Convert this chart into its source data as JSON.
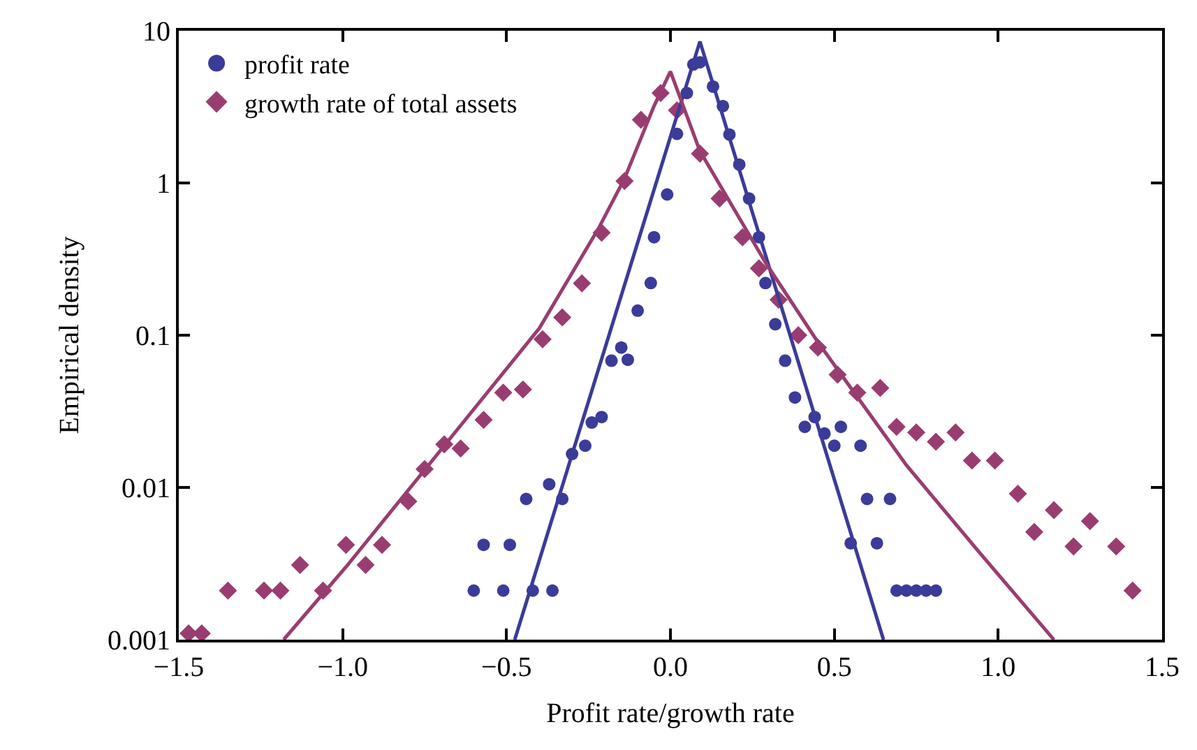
{
  "chart_data": {
    "type": "scatter",
    "xlabel": "Profit rate/growth rate",
    "ylabel": "Empirical density",
    "log": "y",
    "legend": "top left",
    "xlim": [
      -1.5,
      1.5
    ],
    "ylim": [
      0.001,
      10
    ],
    "xticks": [
      {
        "value": -1.5,
        "label": "−1.5"
      },
      {
        "value": -1.0,
        "label": "−1.0"
      },
      {
        "value": -0.5,
        "label": "−0.5"
      },
      {
        "value": 0,
        "label": "0.0"
      },
      {
        "value": 0.5,
        "label": "0.5"
      },
      {
        "value": 1.0,
        "label": "1.0"
      },
      {
        "value": 1.5,
        "label": "1.5"
      }
    ],
    "yticks": [
      0.001,
      0.01,
      0.1,
      1,
      10
    ],
    "series": [
      {
        "name": "profit rate",
        "marker": "circle",
        "color": "#3b3b99",
        "x": [
          -0.6,
          -0.51,
          -0.42,
          -0.36,
          -0.57,
          -0.49,
          -0.44,
          -0.37,
          -0.33,
          -0.3,
          -0.26,
          -0.24,
          -0.21,
          -0.18,
          -0.15,
          -0.13,
          -0.1,
          -0.06,
          -0.05,
          -0.01,
          0.02,
          0.05,
          0.07,
          0.09,
          0.13,
          0.16,
          0.18,
          0.21,
          0.24,
          0.27,
          0.29,
          0.32,
          0.35,
          0.38,
          0.41,
          0.44,
          0.47,
          0.5,
          0.52,
          0.58,
          0.6,
          0.67,
          0.55,
          0.63,
          0.69,
          0.72,
          0.75,
          0.78,
          0.81
        ],
        "values": [
          0.0021,
          0.0021,
          0.0021,
          0.0021,
          0.0042,
          0.0042,
          0.0084,
          0.0105,
          0.0084,
          0.0166,
          0.0188,
          0.0267,
          0.029,
          0.068,
          0.083,
          0.069,
          0.145,
          0.22,
          0.44,
          0.84,
          2.1,
          3.9,
          6.0,
          6.2,
          4.3,
          3.2,
          2.08,
          1.32,
          0.79,
          0.44,
          0.22,
          0.118,
          0.068,
          0.039,
          0.025,
          0.029,
          0.0226,
          0.0188,
          0.025,
          0.0188,
          0.0084,
          0.0084,
          0.0043,
          0.0043,
          0.0021,
          0.0021,
          0.0021,
          0.0021,
          0.0021
        ]
      },
      {
        "name": "growth rate of total assets",
        "marker": "diamond",
        "color": "#993d70",
        "x": [
          -1.47,
          -1.43,
          -1.35,
          -1.24,
          -1.19,
          -1.13,
          -1.06,
          -0.99,
          -0.93,
          -0.88,
          -0.8,
          -0.75,
          -0.69,
          -0.64,
          -0.57,
          -0.51,
          -0.45,
          -0.39,
          -0.33,
          -0.27,
          -0.21,
          -0.14,
          -0.09,
          -0.03,
          0.02,
          0.09,
          0.15,
          0.22,
          0.27,
          0.33,
          0.39,
          0.45,
          0.51,
          0.57,
          0.64,
          0.69,
          0.75,
          0.81,
          0.87,
          0.92,
          0.99,
          1.06,
          1.11,
          1.17,
          1.23,
          1.28,
          1.36,
          1.41
        ],
        "values": [
          0.0011,
          0.0011,
          0.0021,
          0.0021,
          0.0021,
          0.0031,
          0.0021,
          0.0042,
          0.0031,
          0.0042,
          0.0081,
          0.0132,
          0.0192,
          0.018,
          0.0278,
          0.042,
          0.044,
          0.094,
          0.131,
          0.219,
          0.471,
          1.03,
          2.6,
          3.9,
          3.0,
          1.56,
          0.79,
          0.44,
          0.275,
          0.171,
          0.1,
          0.083,
          0.055,
          0.042,
          0.045,
          0.025,
          0.023,
          0.02,
          0.023,
          0.015,
          0.015,
          0.0091,
          0.0051,
          0.0071,
          0.0041,
          0.006,
          0.0041,
          0.0021
        ]
      },
      {
        "type": "line",
        "line_style": "solid",
        "color": "#3b3b99",
        "x": [
          -0.475,
          0.09,
          0.65
        ],
        "values": [
          0.001,
          8.5,
          0.001
        ]
      },
      {
        "type": "line",
        "line_style": "solid",
        "color": "#993d70",
        "x": [
          -1.18,
          -0.99,
          -0.69,
          -0.4,
          -0.22,
          -0.14,
          -0.05,
          0.0,
          0.09,
          0.29,
          0.45,
          0.72,
          0.94,
          1.17
        ],
        "values": [
          0.001,
          0.003,
          0.0188,
          0.111,
          0.5,
          1.07,
          3.2,
          5.4,
          1.62,
          0.3,
          0.09,
          0.014,
          0.0038,
          0.001
        ]
      }
    ]
  }
}
